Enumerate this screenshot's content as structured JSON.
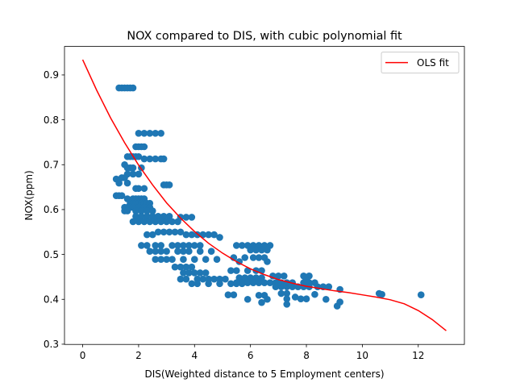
{
  "chart_data": {
    "type": "scatter",
    "title": "NOX compared to DIS, with cubic polynomial fit",
    "xlabel": "DIS(Weighted distance to 5 Employment centers)",
    "ylabel": "NOX(ppm)",
    "xlim": [
      -0.65,
      13.65
    ],
    "ylim": [
      0.2995,
      0.9635
    ],
    "x_ticks": [
      0,
      2,
      4,
      6,
      8,
      10,
      12
    ],
    "y_ticks": [
      0.3,
      0.4,
      0.5,
      0.6,
      0.7,
      0.8,
      0.9
    ],
    "x_tick_labels": [
      "0",
      "2",
      "4",
      "6",
      "8",
      "10",
      "12"
    ],
    "y_tick_labels": [
      "0.3",
      "0.4",
      "0.5",
      "0.6",
      "0.7",
      "0.8",
      "0.9"
    ],
    "grid": false,
    "legend": {
      "position": "top-right",
      "entries": [
        "OLS fit"
      ]
    },
    "colors": {
      "points": "#1f77b4",
      "fit": "#ff0000"
    },
    "series": [
      {
        "type": "scatter",
        "points": [
          [
            1.3,
            0.871
          ],
          [
            1.4,
            0.871
          ],
          [
            1.5,
            0.871
          ],
          [
            1.6,
            0.871
          ],
          [
            1.7,
            0.871
          ],
          [
            1.8,
            0.871
          ],
          [
            2.0,
            0.77
          ],
          [
            2.2,
            0.77
          ],
          [
            2.4,
            0.77
          ],
          [
            2.6,
            0.77
          ],
          [
            2.8,
            0.77
          ],
          [
            1.9,
            0.74
          ],
          [
            2.0,
            0.74
          ],
          [
            2.1,
            0.74
          ],
          [
            2.2,
            0.74
          ],
          [
            1.6,
            0.718
          ],
          [
            1.7,
            0.718
          ],
          [
            1.8,
            0.718
          ],
          [
            1.9,
            0.718
          ],
          [
            2.0,
            0.718
          ],
          [
            2.2,
            0.713
          ],
          [
            2.4,
            0.713
          ],
          [
            2.6,
            0.713
          ],
          [
            2.8,
            0.713
          ],
          [
            2.9,
            0.713
          ],
          [
            1.5,
            0.7
          ],
          [
            1.6,
            0.693
          ],
          [
            1.7,
            0.693
          ],
          [
            1.8,
            0.693
          ],
          [
            2.1,
            0.693
          ],
          [
            1.6,
            0.679
          ],
          [
            1.8,
            0.679
          ],
          [
            2.0,
            0.679
          ],
          [
            1.4,
            0.671
          ],
          [
            1.5,
            0.671
          ],
          [
            1.2,
            0.668
          ],
          [
            1.3,
            0.659
          ],
          [
            1.6,
            0.659
          ],
          [
            2.9,
            0.655
          ],
          [
            3.0,
            0.655
          ],
          [
            3.1,
            0.655
          ],
          [
            1.9,
            0.647
          ],
          [
            2.0,
            0.647
          ],
          [
            2.2,
            0.647
          ],
          [
            1.2,
            0.631
          ],
          [
            1.3,
            0.631
          ],
          [
            1.4,
            0.631
          ],
          [
            1.6,
            0.624
          ],
          [
            1.8,
            0.624
          ],
          [
            1.9,
            0.624
          ],
          [
            2.0,
            0.624
          ],
          [
            2.1,
            0.624
          ],
          [
            2.2,
            0.624
          ],
          [
            1.7,
            0.614
          ],
          [
            1.8,
            0.614
          ],
          [
            1.9,
            0.614
          ],
          [
            2.0,
            0.614
          ],
          [
            2.1,
            0.614
          ],
          [
            2.2,
            0.614
          ],
          [
            2.3,
            0.614
          ],
          [
            2.4,
            0.614
          ],
          [
            1.5,
            0.605
          ],
          [
            1.6,
            0.605
          ],
          [
            1.7,
            0.605
          ],
          [
            1.8,
            0.605
          ],
          [
            2.0,
            0.605
          ],
          [
            2.2,
            0.605
          ],
          [
            2.4,
            0.605
          ],
          [
            1.5,
            0.597
          ],
          [
            1.6,
            0.597
          ],
          [
            1.9,
            0.597
          ],
          [
            2.1,
            0.597
          ],
          [
            2.3,
            0.597
          ],
          [
            2.5,
            0.597
          ],
          [
            1.9,
            0.585
          ],
          [
            2.1,
            0.585
          ],
          [
            2.3,
            0.585
          ],
          [
            2.5,
            0.585
          ],
          [
            2.7,
            0.585
          ],
          [
            2.9,
            0.585
          ],
          [
            3.1,
            0.585
          ],
          [
            3.5,
            0.583
          ],
          [
            3.7,
            0.583
          ],
          [
            3.9,
            0.583
          ],
          [
            1.8,
            0.573
          ],
          [
            2.0,
            0.573
          ],
          [
            2.2,
            0.573
          ],
          [
            2.4,
            0.573
          ],
          [
            2.6,
            0.573
          ],
          [
            2.8,
            0.573
          ],
          [
            3.0,
            0.573
          ],
          [
            3.2,
            0.573
          ],
          [
            3.4,
            0.573
          ],
          [
            2.7,
            0.55
          ],
          [
            2.9,
            0.55
          ],
          [
            3.1,
            0.55
          ],
          [
            3.3,
            0.55
          ],
          [
            3.5,
            0.55
          ],
          [
            2.3,
            0.544
          ],
          [
            2.5,
            0.544
          ],
          [
            3.7,
            0.544
          ],
          [
            3.9,
            0.544
          ],
          [
            4.1,
            0.544
          ],
          [
            4.3,
            0.544
          ],
          [
            4.5,
            0.544
          ],
          [
            4.7,
            0.544
          ],
          [
            4.9,
            0.538
          ],
          [
            2.1,
            0.52
          ],
          [
            2.3,
            0.52
          ],
          [
            2.6,
            0.52
          ],
          [
            2.8,
            0.52
          ],
          [
            3.2,
            0.52
          ],
          [
            3.4,
            0.52
          ],
          [
            3.6,
            0.52
          ],
          [
            3.8,
            0.52
          ],
          [
            4.0,
            0.52
          ],
          [
            4.2,
            0.52
          ],
          [
            2.4,
            0.507
          ],
          [
            2.6,
            0.507
          ],
          [
            2.8,
            0.507
          ],
          [
            3.0,
            0.507
          ],
          [
            3.4,
            0.507
          ],
          [
            3.6,
            0.507
          ],
          [
            3.8,
            0.507
          ],
          [
            4.2,
            0.507
          ],
          [
            4.6,
            0.507
          ],
          [
            2.6,
            0.489
          ],
          [
            2.8,
            0.489
          ],
          [
            3.0,
            0.489
          ],
          [
            3.2,
            0.489
          ],
          [
            3.6,
            0.489
          ],
          [
            4.0,
            0.489
          ],
          [
            4.4,
            0.489
          ],
          [
            4.8,
            0.489
          ],
          [
            3.3,
            0.472
          ],
          [
            3.5,
            0.472
          ],
          [
            3.7,
            0.472
          ],
          [
            3.9,
            0.472
          ],
          [
            3.6,
            0.459
          ],
          [
            3.8,
            0.459
          ],
          [
            4.0,
            0.459
          ],
          [
            4.2,
            0.459
          ],
          [
            4.4,
            0.459
          ],
          [
            3.5,
            0.445
          ],
          [
            3.7,
            0.445
          ],
          [
            4.1,
            0.445
          ],
          [
            4.3,
            0.445
          ],
          [
            4.5,
            0.445
          ],
          [
            4.7,
            0.445
          ],
          [
            4.9,
            0.445
          ],
          [
            5.1,
            0.445
          ],
          [
            3.9,
            0.435
          ],
          [
            4.1,
            0.435
          ],
          [
            4.5,
            0.435
          ],
          [
            4.9,
            0.435
          ],
          [
            5.3,
            0.435
          ],
          [
            5.5,
            0.435
          ],
          [
            5.7,
            0.435
          ],
          [
            5.2,
            0.41
          ],
          [
            5.4,
            0.41
          ],
          [
            5.5,
            0.52
          ],
          [
            5.7,
            0.52
          ],
          [
            5.9,
            0.52
          ],
          [
            6.1,
            0.52
          ],
          [
            6.3,
            0.52
          ],
          [
            6.5,
            0.52
          ],
          [
            6.7,
            0.52
          ],
          [
            6.0,
            0.51
          ],
          [
            6.2,
            0.51
          ],
          [
            6.4,
            0.51
          ],
          [
            6.6,
            0.51
          ],
          [
            5.4,
            0.493
          ],
          [
            5.8,
            0.493
          ],
          [
            6.1,
            0.493
          ],
          [
            6.3,
            0.493
          ],
          [
            6.5,
            0.493
          ],
          [
            5.6,
            0.484
          ],
          [
            6.6,
            0.484
          ],
          [
            5.3,
            0.464
          ],
          [
            5.5,
            0.464
          ],
          [
            5.9,
            0.464
          ],
          [
            6.2,
            0.464
          ],
          [
            6.4,
            0.464
          ],
          [
            5.6,
            0.448
          ],
          [
            5.8,
            0.448
          ],
          [
            6.0,
            0.448
          ],
          [
            6.2,
            0.448
          ],
          [
            6.4,
            0.448
          ],
          [
            5.5,
            0.437
          ],
          [
            5.7,
            0.437
          ],
          [
            5.9,
            0.437
          ],
          [
            6.1,
            0.437
          ],
          [
            6.3,
            0.437
          ],
          [
            6.5,
            0.437
          ],
          [
            6.7,
            0.437
          ],
          [
            6.9,
            0.437
          ],
          [
            7.1,
            0.437
          ],
          [
            5.9,
            0.4
          ],
          [
            6.3,
            0.409
          ],
          [
            6.5,
            0.409
          ],
          [
            6.8,
            0.452
          ],
          [
            7.0,
            0.452
          ],
          [
            7.2,
            0.452
          ],
          [
            6.4,
            0.393
          ],
          [
            6.6,
            0.4
          ],
          [
            6.9,
            0.428
          ],
          [
            7.1,
            0.428
          ],
          [
            7.3,
            0.428
          ],
          [
            7.5,
            0.428
          ],
          [
            7.7,
            0.428
          ],
          [
            7.0,
            0.437
          ],
          [
            7.3,
            0.437
          ],
          [
            7.5,
            0.437
          ],
          [
            7.1,
            0.413
          ],
          [
            7.3,
            0.413
          ],
          [
            7.3,
            0.401
          ],
          [
            7.3,
            0.389
          ],
          [
            7.8,
            0.401
          ],
          [
            8.0,
            0.401
          ],
          [
            7.6,
            0.405
          ],
          [
            7.9,
            0.452
          ],
          [
            8.1,
            0.452
          ],
          [
            7.9,
            0.437
          ],
          [
            8.1,
            0.437
          ],
          [
            8.3,
            0.437
          ],
          [
            7.9,
            0.428
          ],
          [
            8.1,
            0.428
          ],
          [
            8.4,
            0.428
          ],
          [
            8.6,
            0.428
          ],
          [
            8.8,
            0.428
          ],
          [
            8.0,
            0.442
          ],
          [
            8.3,
            0.411
          ],
          [
            8.7,
            0.4
          ],
          [
            9.1,
            0.385
          ],
          [
            9.2,
            0.394
          ],
          [
            9.2,
            0.422
          ],
          [
            10.6,
            0.413
          ],
          [
            10.7,
            0.411
          ],
          [
            12.1,
            0.41
          ]
        ]
      },
      {
        "name": "OLS fit",
        "type": "line",
        "fit": "cubic",
        "x": [
          0,
          0.5,
          1,
          1.5,
          2,
          2.5,
          3,
          3.5,
          4,
          4.5,
          5,
          5.5,
          6,
          6.5,
          7,
          7.5,
          8,
          8.5,
          9,
          9.5,
          10,
          10.5,
          11,
          11.5,
          12,
          12.5,
          13
        ],
        "y": [
          0.934,
          0.866,
          0.804,
          0.749,
          0.699,
          0.655,
          0.615,
          0.581,
          0.551,
          0.525,
          0.503,
          0.484,
          0.468,
          0.455,
          0.444,
          0.436,
          0.429,
          0.424,
          0.419,
          0.415,
          0.41,
          0.405,
          0.399,
          0.39,
          0.375,
          0.355,
          0.33
        ]
      }
    ]
  }
}
